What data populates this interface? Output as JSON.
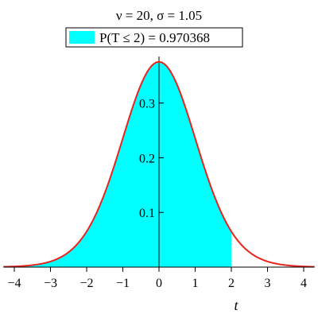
{
  "chart_data": {
    "type": "area",
    "title": "ν = 20, σ = 1.05",
    "legend": {
      "entries": [
        {
          "label": "P(T ≤ 2) = 0.970368",
          "color": "#00FFFF"
        }
      ],
      "placement": "top-center"
    },
    "xlabel": "t",
    "ylabel": "",
    "xlim": [
      -4.3,
      4.3
    ],
    "ylim": [
      0,
      0.4
    ],
    "x_ticks": [
      -4,
      -3,
      -2,
      -1,
      0,
      1,
      2,
      3,
      4
    ],
    "x_tick_labels": [
      "−4",
      "−3",
      "−2",
      "−1",
      "0",
      "1",
      "2",
      "3",
      "4"
    ],
    "y_ticks": [
      0.1,
      0.2,
      0.3
    ],
    "y_tick_labels": [
      "0.1",
      "0.2",
      "0.3"
    ],
    "grid": false,
    "series": [
      {
        "kind": "density-curve",
        "color": "#E8241F",
        "x": [
          -4.3,
          -4,
          -3.5,
          -3,
          -2.5,
          -2,
          -1.5,
          -1,
          -0.5,
          0,
          0.5,
          1,
          1.5,
          2,
          2.5,
          3,
          3.5,
          4,
          4.3
        ],
        "y": [
          0.0014,
          0.0028,
          0.0068,
          0.0153,
          0.0343,
          0.0701,
          0.1276,
          0.2021,
          0.275,
          0.3772,
          0.275,
          0.2021,
          0.1276,
          0.0701,
          0.0343,
          0.0153,
          0.0068,
          0.0028,
          0.0014
        ]
      },
      {
        "kind": "shaded-area",
        "color": "#00FFFF",
        "x_range": [
          -4.3,
          2
        ],
        "probability": 0.970368
      }
    ],
    "parameters": {
      "nu": 20,
      "sigma": 1.05,
      "threshold": 2
    }
  }
}
